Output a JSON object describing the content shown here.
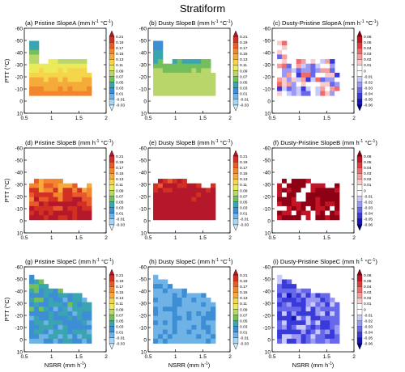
{
  "figure": {
    "title": "Stratiform",
    "xlabel_left": "NSRR (mm h",
    "xlabel_right": ")",
    "xlabel_exp": "-1",
    "ylabel_main": "PTT (",
    "ylabel_unit": "°C",
    "ylabel_close": ")"
  },
  "chart_data": {
    "type": "heatmap",
    "x_ticks": [
      "0.5",
      "1",
      "1.5",
      "2"
    ],
    "y_ticks": [
      "-60",
      "-50",
      "-40",
      "-30",
      "-20",
      "-10",
      "0",
      "10"
    ],
    "xlim": [
      0.5,
      2.0
    ],
    "ylim": [
      -60,
      10
    ],
    "colorbar_main": {
      "labels": [
        "0.21",
        "0.19",
        "0.17",
        "0.15",
        "0.13",
        "0.11",
        "0.09",
        "0.07",
        "0.05",
        "0.03",
        "0.01",
        "-0.01",
        "-0.03"
      ],
      "colors": [
        "#b5182a",
        "#d23022",
        "#e85a2a",
        "#f2862f",
        "#f5aa3a",
        "#f5d54a",
        "#eaea5a",
        "#b9d66b",
        "#72bf5c",
        "#3aa5b0",
        "#3d8ed4",
        "#6fb2e6",
        "#a7d5f2",
        "#d7eefb"
      ]
    },
    "colorbar_diff": {
      "labels": [
        "0.06",
        "0.05",
        "0.04",
        "0.03",
        "0.02",
        "0.01",
        "0",
        "-0.01",
        "-0.02",
        "-0.03",
        "-0.04",
        "-0.05",
        "-0.06"
      ],
      "colors": [
        "#8e0014",
        "#c41426",
        "#e23a3a",
        "#f06a6a",
        "#f79d9d",
        "#fbcaca",
        "#ffffff",
        "#ffffff",
        "#c9c9fb",
        "#9a9af5",
        "#6868ea",
        "#3a3ad8",
        "#1616b8",
        "#00007a"
      ]
    },
    "panels": [
      {
        "label": "(a) Pristine SlopeA",
        "field": "a"
      },
      {
        "label": "(b) Dusty SlopeB",
        "field": "b"
      },
      {
        "label": "(c) Dusty-Pristine SlopeA",
        "field": "c"
      },
      {
        "label": "(d) Pristine SlopeB",
        "field": "d"
      },
      {
        "label": "(e) Dusty SlopeB",
        "field": "e"
      },
      {
        "label": "(f) Dusty-Pristine SlopeB",
        "field": "f"
      },
      {
        "label": "(g) Pristine SlopeC",
        "field": "g"
      },
      {
        "label": "(h) Dusty SlopeC",
        "field": "h"
      },
      {
        "label": "(i) Dusty-Pristine SlopeC",
        "field": "i"
      }
    ],
    "panel_unit": {
      "open": " (mm h",
      "exp1": "-1",
      "mid": " °C",
      "exp2": "-1",
      "close": ")"
    }
  }
}
